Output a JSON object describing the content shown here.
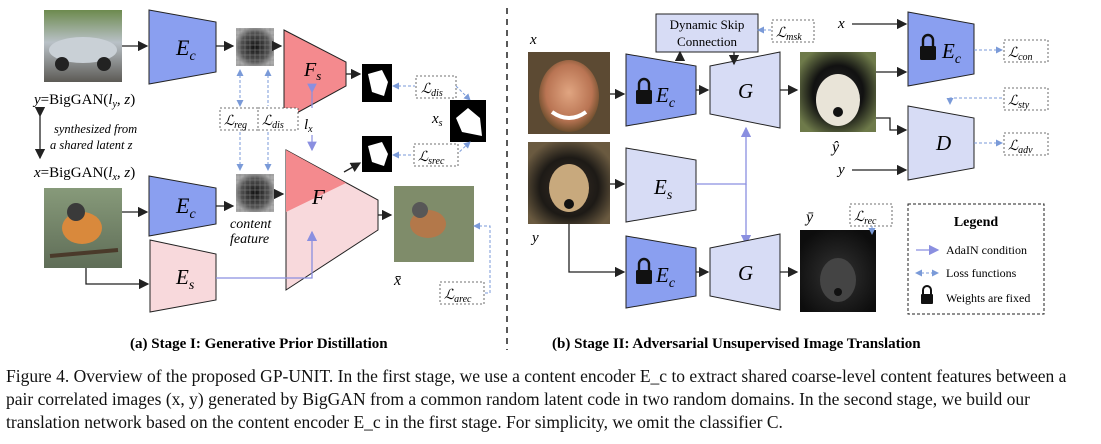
{
  "stage1": {
    "title": "(a) Stage I: Generative Prior Distillation",
    "y_eq": "y=BigGAN(l_y, z)",
    "x_eq": "x=BigGAN(l_x, z)",
    "synth_line1": "synthesized from",
    "synth_line2": "a shared latent z",
    "enc_c": "E_c",
    "enc_s": "E_s",
    "fs": "F_s",
    "f": "F",
    "lx": "l_x",
    "xs": "x_s",
    "xbar": "x̄",
    "content_line1": "content",
    "content_line2": "feature",
    "loss_reg": "L_reg",
    "loss_dis": "L_dis",
    "loss_dis2": "L_dis",
    "loss_srec": "L_srec",
    "loss_arec": "L_arec"
  },
  "stage2": {
    "title": "(b) Stage II: Adversarial Unsupervised Image Translation",
    "x": "x",
    "y": "y",
    "y2": "y",
    "x_right": "x",
    "yhat": "ŷ",
    "ybar": "ȳ",
    "enc_c": "E_c",
    "enc_s": "E_s",
    "gen": "G",
    "disc": "D",
    "skip_line1": "Dynamic Skip",
    "skip_line2": "Connection",
    "loss_msk": "L_msk",
    "loss_con": "L_con",
    "loss_sty": "L_sty",
    "loss_adv": "L_adv",
    "loss_rec": "L_rec"
  },
  "legend": {
    "title": "Legend",
    "adain": "AdaIN condition",
    "loss": "Loss functions",
    "fixed": "Weights are fixed"
  },
  "caption": "Figure 4. Overview of the proposed GP-UNIT. In the first stage, we use a content encoder E_c to extract shared coarse-level content features between a pair correlated images (x, y) generated by BigGAN from a common random latent code in two random domains. In the second stage, we build our translation network based on the content encoder E_c in the first stage. For simplicity, we omit the classifier C.",
  "colors": {
    "blue_encoder": "#8a9ff0",
    "light_blue": "#d7dcf5",
    "pink_fs": "#f48a8e",
    "light_pink": "#f8d9dc",
    "arrow_purple": "#8a8fe0",
    "dashed_blue": "#7a9ad8"
  }
}
